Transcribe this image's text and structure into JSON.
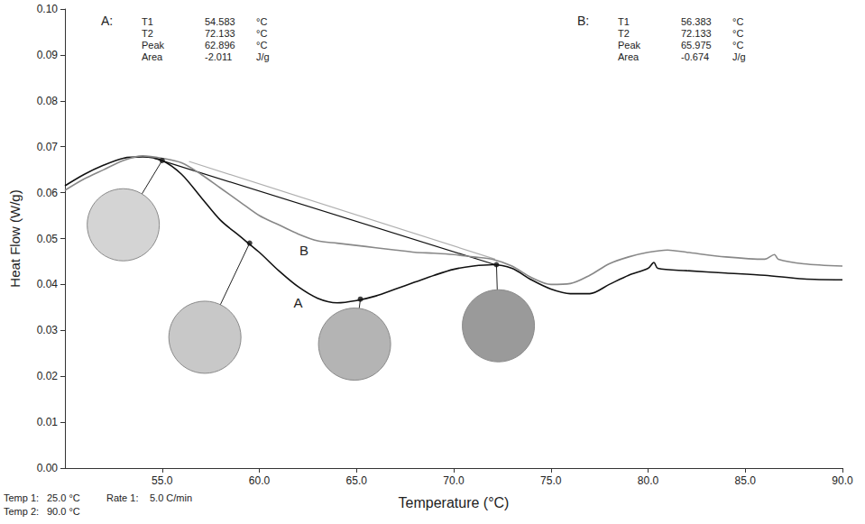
{
  "chart_data": {
    "type": "line",
    "xlabel": "Temperature (°C)",
    "ylabel": "Heat Flow (W/g)",
    "xlim": [
      50,
      90
    ],
    "xticks": [
      {
        "value": 55,
        "label": "55.0"
      },
      {
        "value": 60,
        "label": "60.0"
      },
      {
        "value": 65,
        "label": "65.0"
      },
      {
        "value": 70,
        "label": "70.0"
      },
      {
        "value": 75,
        "label": "75.0"
      },
      {
        "value": 80,
        "label": "80.0"
      },
      {
        "value": 85,
        "label": "85.0"
      },
      {
        "value": 90,
        "label": "90.0"
      }
    ],
    "ylim": [
      0,
      0.1
    ],
    "yticks": [
      {
        "value": 0,
        "label": "0.00"
      },
      {
        "value": 0.01,
        "label": "0.01"
      },
      {
        "value": 0.02,
        "label": "0.02"
      },
      {
        "value": 0.03,
        "label": "0.03"
      },
      {
        "value": 0.04,
        "label": "0.04"
      },
      {
        "value": 0.05,
        "label": "0.05"
      },
      {
        "value": 0.06,
        "label": "0.06"
      },
      {
        "value": 0.07,
        "label": "0.07"
      },
      {
        "value": 0.08,
        "label": "0.08"
      },
      {
        "value": 0.09,
        "label": "0.09"
      },
      {
        "value": 0.1,
        "label": "0.10"
      }
    ],
    "grid": false,
    "series": [
      {
        "name": "A",
        "color": "#111111",
        "x": [
          50,
          51,
          52,
          53,
          54,
          55,
          56,
          57,
          58,
          59,
          60,
          61,
          62,
          63,
          64,
          65,
          66,
          67,
          68,
          69,
          70,
          71,
          72,
          73,
          74,
          75,
          76,
          77,
          78,
          79,
          80,
          80.3,
          80.5,
          82,
          84,
          86,
          88,
          90
        ],
        "values": [
          0.0615,
          0.064,
          0.066,
          0.0675,
          0.0678,
          0.067,
          0.064,
          0.059,
          0.054,
          0.0505,
          0.047,
          0.043,
          0.0395,
          0.037,
          0.036,
          0.0365,
          0.0375,
          0.039,
          0.0405,
          0.042,
          0.0433,
          0.044,
          0.0443,
          0.0435,
          0.041,
          0.039,
          0.038,
          0.038,
          0.04,
          0.042,
          0.0435,
          0.0448,
          0.0435,
          0.043,
          0.0425,
          0.042,
          0.0412,
          0.041
        ],
        "baseline": {
          "x": [
            54.583,
            72.133
          ],
          "values": [
            0.0675,
            0.0443
          ]
        },
        "points": {
          "x": [
            55,
            59.5,
            65.2,
            72.2
          ],
          "values": [
            0.067,
            0.049,
            0.0368,
            0.0443
          ]
        }
      },
      {
        "name": "B",
        "color": "#888888",
        "x": [
          50,
          51,
          52,
          53,
          54,
          55,
          56,
          57,
          58,
          59,
          60,
          61,
          62,
          63,
          64,
          65,
          66,
          67,
          68,
          69,
          70,
          71,
          72,
          73,
          74,
          75,
          76,
          77,
          78,
          79,
          80,
          81,
          82,
          84,
          86,
          86.5,
          86.7,
          88,
          90
        ],
        "values": [
          0.0605,
          0.063,
          0.065,
          0.067,
          0.068,
          0.0675,
          0.0665,
          0.064,
          0.061,
          0.058,
          0.055,
          0.053,
          0.051,
          0.0495,
          0.049,
          0.0485,
          0.048,
          0.0475,
          0.047,
          0.0468,
          0.0465,
          0.046,
          0.0455,
          0.044,
          0.0415,
          0.04,
          0.0402,
          0.042,
          0.0445,
          0.046,
          0.047,
          0.0475,
          0.047,
          0.046,
          0.0455,
          0.0465,
          0.0455,
          0.0445,
          0.044
        ],
        "baseline": {
          "x": [
            56.383,
            72.133
          ],
          "values": [
            0.0668,
            0.0455
          ]
        }
      }
    ],
    "annotations": [
      {
        "title": "A:",
        "rows": [
          [
            "T1",
            54.583,
            "°C"
          ],
          [
            "T2",
            72.133,
            "°C"
          ],
          [
            "Peak",
            62.896,
            "°C"
          ],
          [
            "Area",
            -2.011,
            "J/g"
          ]
        ]
      },
      {
        "title": "B:",
        "rows": [
          [
            "T1",
            56.383,
            "°C"
          ],
          [
            "T2",
            72.133,
            "°C"
          ],
          [
            "Peak",
            65.975,
            "°C"
          ],
          [
            "Area",
            -0.674,
            "J/g"
          ]
        ]
      }
    ],
    "notes": [
      [
        "Temp 1:",
        "25.0 °C",
        "Rate 1:",
        "5.0 C/min"
      ],
      [
        "Temp 2:",
        "90.0 °C"
      ]
    ]
  }
}
